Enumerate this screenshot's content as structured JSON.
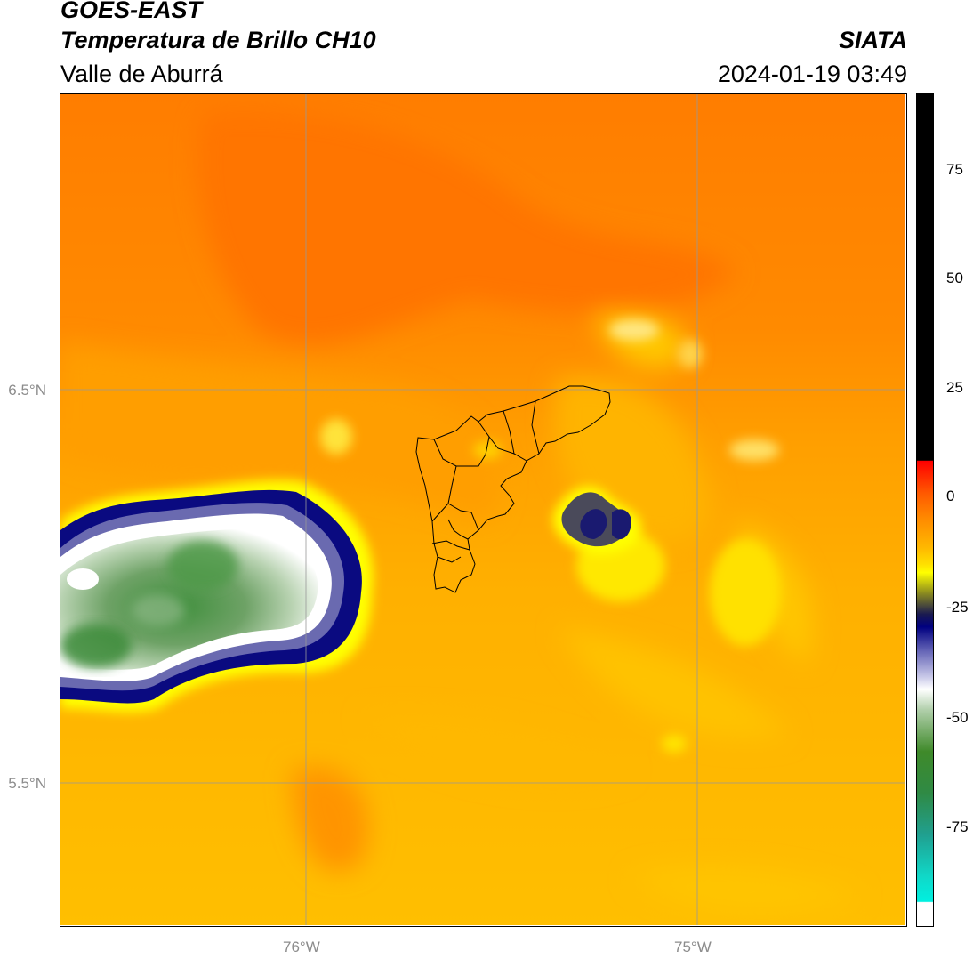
{
  "header": {
    "satellite": "GOES-EAST",
    "product": "Temperatura de Brillo CH10",
    "region": "Valle de Aburrá",
    "organization": "SIATA",
    "datetime": "2024-01-19 03:49"
  },
  "map": {
    "lat_gridlines": [
      "6.5°N",
      "5.5°N"
    ],
    "lon_gridlines": [
      "76°W",
      "75°W"
    ]
  },
  "colorbar": {
    "ticks": [
      "75",
      "50",
      "25",
      "0",
      "-25",
      "-50",
      "-75"
    ],
    "range": [
      -95,
      92
    ],
    "units_shown": false
  },
  "colors": {
    "warm_orange": "#ff7d00",
    "mid_orange": "#ff9a00",
    "amber": "#ffbf00",
    "yellow": "#ffff00",
    "navy": "#000080",
    "white": "#ffffff",
    "green": "#2f8a2f",
    "teal": "#00e5d8",
    "black": "#000000",
    "red": "#ff2a00"
  }
}
